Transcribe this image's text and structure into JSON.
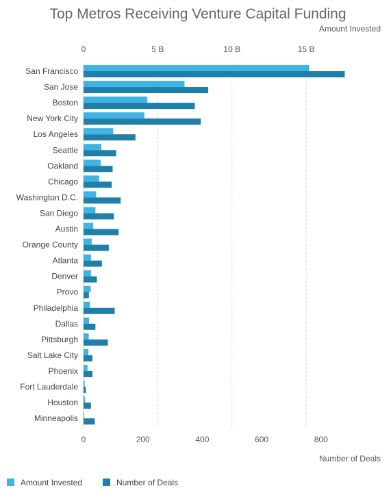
{
  "chart_data": {
    "type": "bar",
    "title": "Top Metros Receiving Venture Capital Funding",
    "top_axis": {
      "label": "Amount Invested",
      "ticks": [
        "0",
        "5 B",
        "10 B",
        "15 B"
      ],
      "tick_values": [
        0,
        5,
        10,
        15
      ],
      "range": [
        0,
        18.5
      ],
      "unit": "B"
    },
    "bottom_axis": {
      "label": "Number of Deals",
      "ticks": [
        "0",
        "200",
        "400",
        "600",
        "800"
      ],
      "tick_values": [
        0,
        200,
        400,
        600,
        800
      ],
      "range": [
        0,
        925
      ]
    },
    "categories": [
      "San Francisco",
      "San Jose",
      "Boston",
      "New York City",
      "Los Angeles",
      "Seattle",
      "Oakland",
      "Chicago",
      "Washington D.C.",
      "San Diego",
      "Austin",
      "Orange County",
      "Atlanta",
      "Denver",
      "Provo",
      "Philadelphia",
      "Dallas",
      "Pittsburgh",
      "Salt Lake City",
      "Phoenix",
      "Fort Lauderdale",
      "Houston",
      "Minneapolis"
    ],
    "series": [
      {
        "name": "Amount Invested",
        "axis": "top",
        "color": "#3fb3e3",
        "values": [
          15.2,
          6.8,
          4.3,
          4.1,
          2.0,
          1.2,
          1.15,
          1.05,
          0.85,
          0.8,
          0.65,
          0.55,
          0.5,
          0.5,
          0.48,
          0.43,
          0.37,
          0.35,
          0.33,
          0.27,
          0.08,
          0.1,
          0.05
        ]
      },
      {
        "name": "Number of Deals",
        "axis": "bottom",
        "color": "#1f7fa8",
        "values": [
          880,
          420,
          375,
          395,
          175,
          110,
          98,
          95,
          125,
          102,
          118,
          85,
          62,
          45,
          18,
          105,
          40,
          82,
          30,
          30,
          8,
          25,
          38
        ]
      }
    ],
    "grid": true,
    "legend_position": "bottom-left"
  }
}
